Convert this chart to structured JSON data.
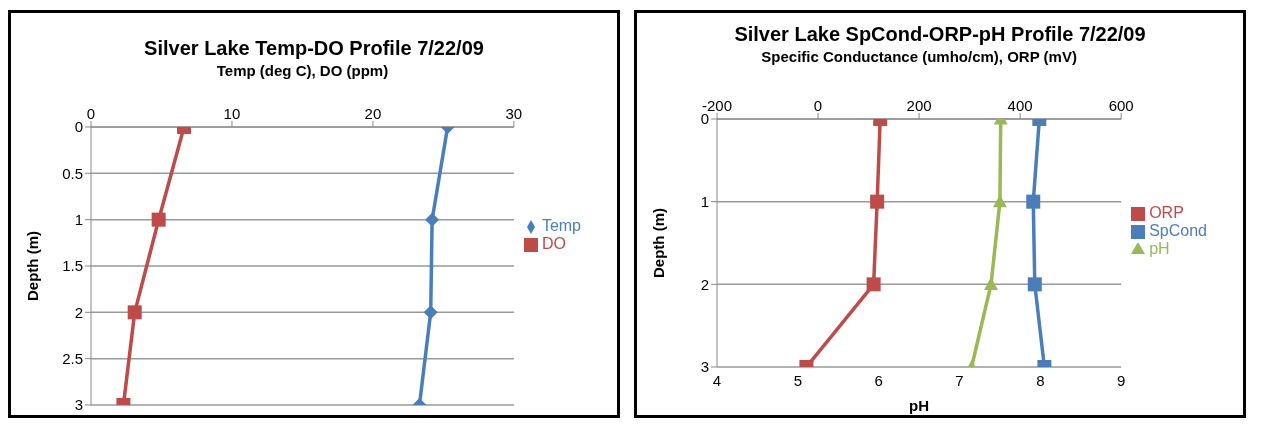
{
  "chart_data": [
    {
      "type": "line",
      "title": "Silver Lake Temp-DO Profile 7/22/09",
      "xlabel": "Temp (deg C), DO (ppm)",
      "ylabel": "Depth (m)",
      "xlim": [
        0,
        30
      ],
      "xticks": [
        0,
        10,
        20,
        30
      ],
      "ylim": [
        3,
        0
      ],
      "yticks": [
        0,
        0.5,
        1,
        1.5,
        2,
        2.5,
        3
      ],
      "grid": "y",
      "legend": "right",
      "series": [
        {
          "name": "Temp",
          "color": "#4a7ebb",
          "marker": "diamond",
          "x": [
            25.3,
            24.2,
            24.1,
            23.3
          ],
          "values": [
            0,
            1,
            2,
            3
          ]
        },
        {
          "name": "DO",
          "color": "#be4b48",
          "marker": "square",
          "x": [
            6.6,
            4.8,
            3.1,
            2.3
          ],
          "values": [
            0,
            1,
            2,
            3
          ]
        }
      ]
    },
    {
      "type": "line",
      "title": "Silver Lake SpCond-ORP-pH Profile 7/22/09",
      "xlabel": "Specific Conductance (umho/cm), ORP (mV)",
      "x2label": "pH",
      "ylabel": "Depth (m)",
      "xlim": [
        -200,
        600
      ],
      "xticks": [
        -200,
        0,
        200,
        400,
        600
      ],
      "x2lim": [
        4,
        9
      ],
      "x2ticks": [
        4,
        5,
        6,
        7,
        8,
        9
      ],
      "ylim": [
        3,
        0
      ],
      "yticks": [
        0,
        1,
        2,
        3
      ],
      "grid": "y",
      "legend": "right",
      "series": [
        {
          "name": "ORP",
          "color": "#be4b48",
          "marker": "square",
          "x": [
            123,
            117,
            110,
            -23
          ],
          "values": [
            0,
            1,
            2,
            3
          ]
        },
        {
          "name": "SpCond",
          "color": "#4a7ebb",
          "marker": "square",
          "x": [
            438,
            426,
            429,
            448
          ],
          "values": [
            0,
            1,
            2,
            3
          ]
        },
        {
          "name": "pH",
          "color": "#98b954",
          "marker": "triangle",
          "axis": "x2",
          "x": [
            7.51,
            7.5,
            7.39,
            7.15
          ],
          "values": [
            0,
            1,
            2,
            3
          ]
        }
      ]
    }
  ]
}
